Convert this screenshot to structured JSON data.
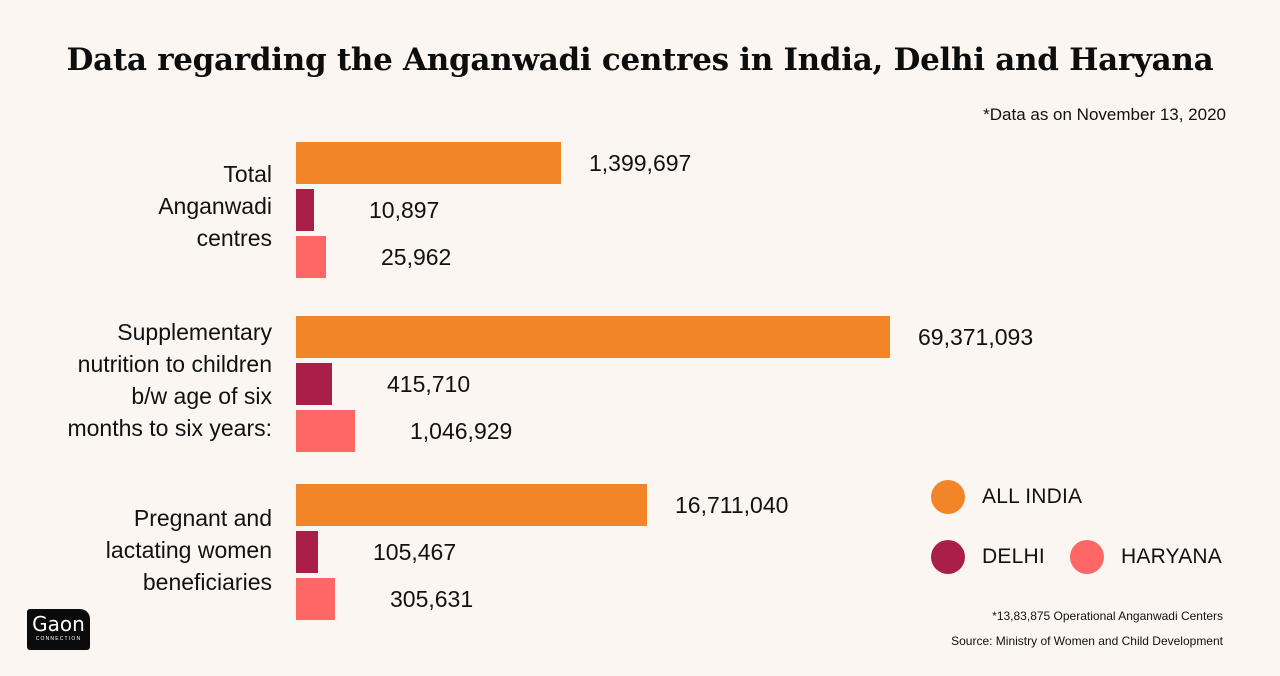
{
  "chart_data": {
    "type": "bar",
    "orientation": "horizontal",
    "title": "Data regarding the Anganwadi centres in India, Delhi and Haryana",
    "subtitle": "*Data as on November 13, 2020",
    "categories": [
      "Total Anganwadi centres",
      "Supplementary nutrition to children b/w age of six months to six years:",
      "Pregnant and lactating women beneficiaries"
    ],
    "category_lines": [
      [
        "Total",
        "Anganwadi",
        "centres"
      ],
      [
        "Supplementary",
        "nutrition to children",
        "b/w age of six",
        "months to six years:"
      ],
      [
        "Pregnant and",
        "lactating women",
        "beneficiaries"
      ]
    ],
    "series": [
      {
        "name": "ALL INDIA",
        "color": "#f28527",
        "values": [
          1399697,
          69371093,
          16711040
        ],
        "labels": [
          "1,399,697",
          "69,371,093",
          "16,711,040"
        ]
      },
      {
        "name": "DELHI",
        "color": "#a91f4a",
        "values": [
          10897,
          415710,
          105467
        ],
        "labels": [
          "10,897",
          "415,710",
          "105,467"
        ]
      },
      {
        "name": "HARYANA",
        "color": "#ff6666",
        "values": [
          25962,
          1046929,
          305631
        ],
        "labels": [
          "25,962",
          "1,046,929",
          "305,631"
        ]
      }
    ],
    "xlabel": "",
    "ylabel": "",
    "grid": false,
    "legend_position": "bottom-right",
    "notes": [
      "*13,83,875 Operational Anganwadi Centers",
      "Source: Ministry of Women and Child Development"
    ]
  },
  "legend": [
    {
      "label": "ALL INDIA",
      "color": "#f28527"
    },
    {
      "label": "DELHI",
      "color": "#a91f4a"
    },
    {
      "label": "HARYANA",
      "color": "#ff6666"
    }
  ],
  "footer": {
    "operational_note": "*13,83,875 Operational Anganwadi Centers",
    "source": "Source: Ministry of Women and Child Development"
  },
  "logo": {
    "main": "Gaon",
    "sub": "CONNECTION"
  }
}
